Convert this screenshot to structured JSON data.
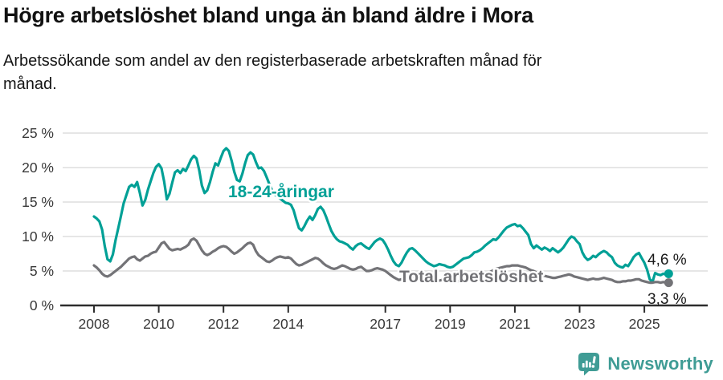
{
  "header": {
    "title": "Högre arbetslöshet bland unga än bland äldre i Mora",
    "subtitle": "Arbetssökande som andel av den registerbaserade arbetskraften månad för månad."
  },
  "chart_data": {
    "type": "line",
    "title": "Högre arbetslöshet bland unga än bland äldre i Mora",
    "x_start_year": 2008,
    "x_step_months": 1,
    "x_end": "2025-10",
    "grid": "horizontal-only",
    "x_axis": {
      "tick_years": [
        2008,
        2010,
        2012,
        2014,
        2017,
        2019,
        2021,
        2023,
        2025
      ],
      "tick_labels": [
        "2008",
        "2010",
        "2012",
        "2014",
        "2017",
        "2019",
        "2021",
        "2023",
        "2025"
      ]
    },
    "y_axis": {
      "unit": "%",
      "range": [
        0,
        25
      ],
      "ticks": [
        25,
        20,
        15,
        10,
        5,
        0
      ],
      "tick_labels": [
        "25 %",
        "20 %",
        "15 %",
        "10 %",
        "5 %",
        "0 %"
      ]
    },
    "series": [
      {
        "name": "18-24-åringar",
        "color": "#00A096",
        "end_label": "4,6 %",
        "end_value": 4.6,
        "values": [
          12.9,
          12.6,
          12.2,
          11.0,
          8.6,
          6.7,
          6.4,
          7.4,
          9.5,
          11.2,
          13.0,
          14.8,
          16.0,
          17.2,
          17.5,
          17.2,
          17.9,
          16.3,
          14.5,
          15.3,
          16.8,
          18.0,
          19.2,
          20.1,
          20.5,
          19.9,
          18.0,
          15.4,
          16.2,
          17.8,
          19.3,
          19.6,
          19.2,
          19.8,
          19.5,
          20.3,
          21.2,
          21.7,
          21.3,
          19.6,
          17.4,
          16.3,
          16.7,
          17.9,
          19.4,
          20.6,
          20.3,
          21.4,
          22.4,
          22.8,
          22.4,
          21.0,
          19.4,
          18.2,
          18.0,
          19.1,
          20.6,
          21.8,
          22.2,
          21.9,
          20.8,
          19.9,
          20.0,
          19.5,
          18.6,
          17.6,
          16.7,
          16.1,
          15.8,
          15.5,
          15.2,
          14.9,
          14.8,
          14.6,
          13.8,
          12.4,
          11.2,
          10.9,
          11.5,
          12.3,
          12.9,
          12.4,
          13.1,
          14.0,
          14.3,
          13.8,
          12.9,
          11.8,
          10.8,
          10.1,
          9.6,
          9.3,
          9.2,
          9.0,
          8.8,
          8.4,
          8.1,
          8.6,
          8.9,
          9.0,
          8.7,
          8.4,
          8.2,
          8.7,
          9.2,
          9.5,
          9.7,
          9.5,
          8.9,
          8.1,
          7.2,
          6.4,
          5.9,
          5.7,
          6.2,
          7.0,
          7.7,
          8.2,
          8.3,
          8.0,
          7.6,
          7.2,
          6.8,
          6.4,
          6.1,
          5.9,
          5.7,
          5.8,
          6.0,
          5.9,
          5.8,
          5.6,
          5.5,
          5.6,
          5.9,
          6.2,
          6.5,
          6.8,
          6.9,
          7.0,
          7.3,
          7.7,
          7.8,
          8.0,
          8.3,
          8.7,
          9.0,
          9.3,
          9.6,
          9.5,
          9.9,
          10.4,
          10.9,
          11.3,
          11.5,
          11.7,
          11.8,
          11.5,
          11.6,
          11.2,
          10.7,
          10.2,
          8.9,
          8.3,
          8.7,
          8.4,
          8.1,
          8.4,
          8.2,
          7.9,
          8.3,
          8.0,
          7.7,
          8.0,
          8.4,
          9.0,
          9.6,
          10.0,
          9.8,
          9.3,
          8.9,
          7.7,
          7.0,
          6.6,
          6.8,
          7.2,
          7.0,
          7.4,
          7.7,
          7.9,
          7.7,
          7.3,
          7.0,
          6.2,
          5.8,
          5.6,
          5.5,
          5.9,
          5.7,
          6.3,
          7.0,
          7.4,
          7.6,
          6.9,
          6.2,
          5.2,
          3.8,
          3.4,
          4.7,
          4.5,
          4.4,
          4.6,
          4.5,
          4.6
        ]
      },
      {
        "name": "Total arbetslöshet",
        "color": "#737377",
        "end_label": "3,3 %",
        "end_value": 3.3,
        "values": [
          5.8,
          5.5,
          5.1,
          4.6,
          4.3,
          4.2,
          4.4,
          4.7,
          5.0,
          5.3,
          5.6,
          6.0,
          6.4,
          6.8,
          7.0,
          7.1,
          6.7,
          6.5,
          6.8,
          7.1,
          7.2,
          7.5,
          7.7,
          7.8,
          8.4,
          9.0,
          9.2,
          8.7,
          8.2,
          8.0,
          8.1,
          8.2,
          8.1,
          8.3,
          8.5,
          8.8,
          9.5,
          9.7,
          9.4,
          8.7,
          8.0,
          7.5,
          7.3,
          7.5,
          7.8,
          8.0,
          8.3,
          8.5,
          8.6,
          8.5,
          8.2,
          7.8,
          7.5,
          7.7,
          8.0,
          8.3,
          8.7,
          9.0,
          9.1,
          8.8,
          7.9,
          7.3,
          7.0,
          6.7,
          6.4,
          6.3,
          6.5,
          6.8,
          7.0,
          7.1,
          7.0,
          6.9,
          7.0,
          6.8,
          6.4,
          6.0,
          5.8,
          5.9,
          6.1,
          6.3,
          6.5,
          6.7,
          6.9,
          6.8,
          6.5,
          6.1,
          5.8,
          5.6,
          5.4,
          5.3,
          5.4,
          5.6,
          5.8,
          5.7,
          5.5,
          5.3,
          5.2,
          5.3,
          5.5,
          5.6,
          5.3,
          5.0,
          5.0,
          5.1,
          5.3,
          5.4,
          5.3,
          5.2,
          5.0,
          4.7,
          4.4,
          4.1,
          3.9,
          3.7,
          3.8,
          3.9,
          4.1,
          4.2,
          4.1,
          4.0,
          3.9,
          3.8,
          3.7,
          3.6,
          3.5,
          3.5,
          3.4,
          3.5,
          3.6,
          3.7,
          3.6,
          3.6,
          3.6,
          3.7,
          3.6,
          3.5,
          3.6,
          3.7,
          3.6,
          3.7,
          3.8,
          3.9,
          3.9,
          4.0,
          4.1,
          4.3,
          4.6,
          4.9,
          5.1,
          5.3,
          5.4,
          5.5,
          5.6,
          5.7,
          5.7,
          5.8,
          5.8,
          5.8,
          5.7,
          5.6,
          5.5,
          5.3,
          5.1,
          5.0,
          4.8,
          4.6,
          4.4,
          4.3,
          4.2,
          4.1,
          4.0,
          4.0,
          4.1,
          4.2,
          4.3,
          4.4,
          4.5,
          4.4,
          4.2,
          4.1,
          4.0,
          3.9,
          3.8,
          3.7,
          3.8,
          3.9,
          3.8,
          3.8,
          3.9,
          4.0,
          3.9,
          3.8,
          3.7,
          3.5,
          3.4,
          3.4,
          3.5,
          3.5,
          3.6,
          3.6,
          3.7,
          3.8,
          3.8,
          3.6,
          3.5,
          3.4,
          3.3,
          3.3,
          3.4,
          3.4,
          3.3,
          3.4,
          3.3,
          3.3
        ]
      }
    ],
    "colors": {
      "grid": "#d8d8d8",
      "axis": "#2d2d2d",
      "axis_text": "#383838",
      "value_label_text": "#1a1a1a"
    }
  },
  "footer": {
    "brand": "Newsworthy",
    "brand_color": "#3F9C95",
    "logo_icon": "bar-chart-speech-bubble-icon"
  }
}
